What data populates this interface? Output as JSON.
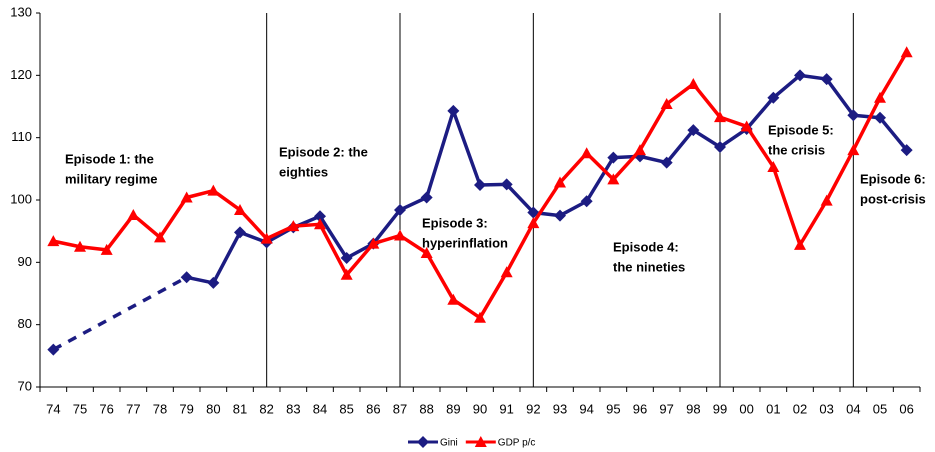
{
  "chart_data": {
    "type": "line",
    "categories": [
      "74",
      "75",
      "76",
      "77",
      "78",
      "79",
      "80",
      "81",
      "82",
      "83",
      "84",
      "85",
      "86",
      "87",
      "88",
      "89",
      "90",
      "91",
      "92",
      "93",
      "94",
      "95",
      "96",
      "97",
      "98",
      "99",
      "00",
      "01",
      "02",
      "03",
      "04",
      "05",
      "06"
    ],
    "series": [
      {
        "name": "Gini",
        "color": "#1c1c82",
        "marker": "diamond",
        "values": [
          76,
          null,
          null,
          null,
          null,
          87.6,
          86.7,
          94.8,
          93.2,
          95.6,
          97.4,
          90.7,
          93,
          98.4,
          100.4,
          114.3,
          102.4,
          102.5,
          98,
          97.5,
          99.8,
          106.8,
          107,
          106,
          111.2,
          108.5,
          111.4,
          116.4,
          120,
          119.4,
          113.6,
          113.2,
          108
        ]
      },
      {
        "name": "GDP p/c",
        "color": "#ff0000",
        "marker": "triangle",
        "values": [
          93.4,
          92.5,
          92,
          97.6,
          94,
          100.4,
          101.5,
          98.4,
          93.8,
          95.8,
          96.1,
          88,
          93,
          94.3,
          91.5,
          84,
          81.1,
          88.4,
          96.3,
          102.8,
          107.5,
          103.3,
          108,
          115.4,
          118.6,
          113.3,
          111.8,
          105.3,
          92.8,
          99.9,
          108,
          116.4,
          123.7
        ]
      }
    ],
    "ylim": [
      70,
      130
    ],
    "yticks": [
      70,
      80,
      90,
      100,
      110,
      120,
      130
    ],
    "episodes": [
      {
        "start": "74",
        "label": [
          "Episode 1: the",
          "military regime"
        ]
      },
      {
        "start": "82",
        "label": [
          "Episode 2: the",
          "eighties"
        ]
      },
      {
        "start": "87",
        "label": [
          "Episode 3:",
          "hyperinflation"
        ]
      },
      {
        "start": "92",
        "label": [
          "Episode 4:",
          "the nineties"
        ]
      },
      {
        "start": "99",
        "label": [
          "Episode 5:",
          "the crisis"
        ]
      },
      {
        "start": "04",
        "label": [
          "Episode 6:",
          "post-crisis"
        ]
      }
    ],
    "legend": "bottom"
  }
}
